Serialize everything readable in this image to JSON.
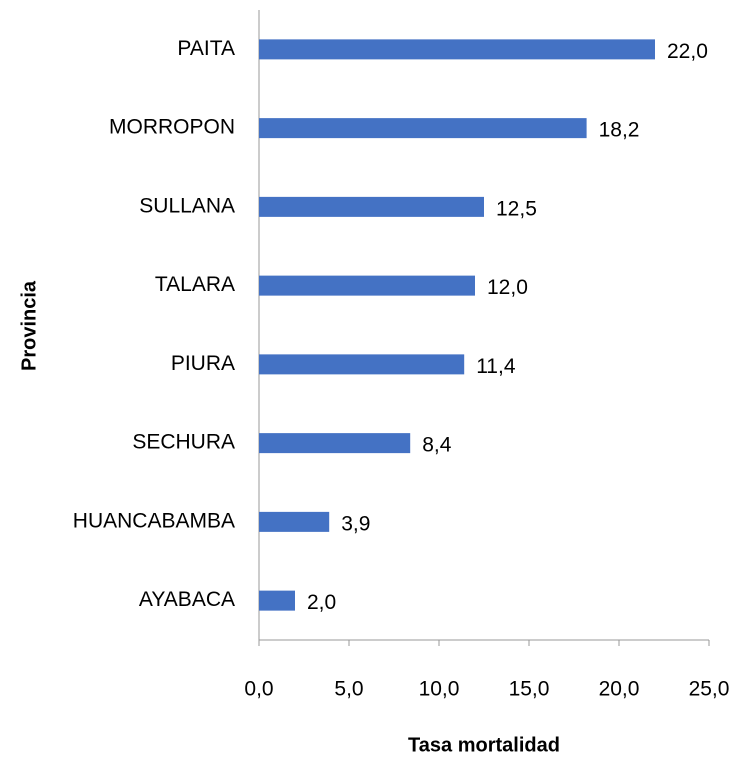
{
  "chart_data": {
    "type": "bar",
    "orientation": "horizontal",
    "xlabel": "Tasa mortalidad",
    "ylabel": "Provincia",
    "categories": [
      "PAITA",
      "MORROPON",
      "SULLANA",
      "TALARA",
      "PIURA",
      "SECHURA",
      "HUANCABAMBA",
      "AYABACA"
    ],
    "values": [
      22.0,
      18.2,
      12.5,
      12.0,
      11.4,
      8.4,
      3.9,
      2.0
    ],
    "value_labels": [
      "22,0",
      "18,2",
      "12,5",
      "12,0",
      "11,4",
      "8,4",
      "3,9",
      "2,0"
    ],
    "color": "#4472c4",
    "xlim": [
      0,
      25
    ],
    "xticks": [
      {
        "value": 0,
        "label": "0,0"
      },
      {
        "value": 5,
        "label": "5,0"
      },
      {
        "value": 10,
        "label": "10,0"
      },
      {
        "value": 15,
        "label": "15,0"
      },
      {
        "value": 20,
        "label": "20,0"
      },
      {
        "value": 25,
        "label": "25,0"
      }
    ],
    "grid": false
  }
}
